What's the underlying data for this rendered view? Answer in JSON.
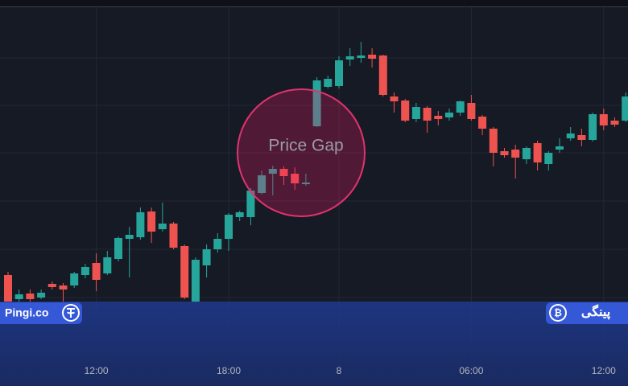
{
  "chart_data": {
    "type": "candlestick",
    "annotation": "Price Gap",
    "categories": [
      null,
      null,
      null,
      null,
      null,
      null,
      null,
      null,
      "12:00",
      null,
      null,
      null,
      null,
      null,
      null,
      null,
      null,
      null,
      null,
      null,
      "18:00",
      null,
      null,
      null,
      null,
      null,
      null,
      null,
      null,
      null,
      "8",
      null,
      null,
      null,
      null,
      null,
      null,
      null,
      null,
      null,
      null,
      null,
      "06:00",
      null,
      null,
      null,
      null,
      null,
      null,
      null,
      null,
      null,
      null,
      null,
      "12:00",
      null,
      null
    ],
    "open": [
      158,
      128,
      135,
      130,
      147,
      145,
      145,
      158,
      173,
      160,
      178,
      203,
      205,
      237,
      215,
      222,
      194,
      125,
      170,
      190,
      203,
      230,
      230,
      260,
      284,
      290,
      284,
      271,
      343,
      392,
      393,
      426,
      428,
      432,
      431,
      380,
      375,
      352,
      366,
      356,
      354,
      360,
      372,
      355,
      340,
      312,
      314,
      302,
      322,
      296,
      314,
      328,
      332,
      326,
      358,
      350,
      350
    ],
    "high": [
      162,
      140,
      140,
      140,
      150,
      148,
      162,
      172,
      185,
      188,
      206,
      218,
      242,
      242,
      248,
      224,
      196,
      180,
      196,
      210,
      235,
      238,
      266,
      288,
      294,
      293,
      292,
      284,
      404,
      406,
      430,
      440,
      448,
      440,
      432,
      385,
      377,
      372,
      368,
      362,
      365,
      375,
      382,
      357,
      342,
      316,
      320,
      318,
      325,
      312,
      328,
      342,
      340,
      360,
      365,
      354,
      385
    ],
    "low": [
      122,
      124,
      124,
      128,
      140,
      125,
      142,
      154,
      138,
      158,
      175,
      155,
      202,
      198,
      212,
      190,
      128,
      123,
      155,
      186,
      188,
      225,
      220,
      258,
      257,
      270,
      264,
      269,
      342,
      390,
      390,
      418,
      422,
      416,
      380,
      360,
      348,
      348,
      335,
      344,
      350,
      356,
      350,
      332,
      293,
      304,
      278,
      296,
      288,
      288,
      310,
      325,
      318,
      324,
      338,
      342,
      348
    ],
    "close": [
      125,
      134,
      128,
      136,
      143,
      140,
      160,
      168,
      152,
      180,
      204,
      208,
      236,
      212,
      222,
      192,
      130,
      177,
      190,
      203,
      233,
      236,
      263,
      282,
      290,
      281,
      272,
      273,
      400,
      402,
      425,
      430,
      431,
      427,
      382,
      374,
      350,
      367,
      350,
      352,
      360,
      374,
      352,
      340,
      310,
      307,
      304,
      316,
      298,
      310,
      318,
      334,
      326,
      358,
      344,
      345,
      380
    ],
    "up_color": "#26a69a",
    "down_color": "#ef5350",
    "ylim": [
      20,
      500
    ]
  },
  "branding": {
    "left": "Pingi.co",
    "right": "پینگی"
  }
}
